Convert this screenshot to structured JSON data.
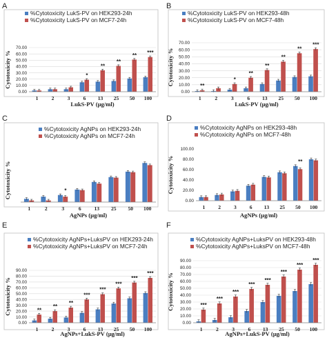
{
  "colors": {
    "blue": "#4a7ec1",
    "red": "#c0504d",
    "grid": "#d9d9d9",
    "axis": "#7f7f7f",
    "frame": "#bfbfbf"
  },
  "chart_data": [
    {
      "type": "bar",
      "letter": "A",
      "categories": [
        "1",
        "2",
        "3",
        "6",
        "13",
        "25",
        "50",
        "100"
      ],
      "series": [
        {
          "name": "%Cytotoxicity LukS-PV on HEK293-24h",
          "values": [
            2,
            4,
            4,
            15,
            16,
            17,
            21,
            23
          ]
        },
        {
          "name": "%Cytotoxicity LukS-PV on MCF7-24h",
          "values": [
            2,
            4,
            7,
            19,
            34,
            41,
            51,
            55
          ]
        }
      ],
      "annotations": [
        "",
        "",
        "",
        "*",
        "**",
        "**",
        "**",
        "***"
      ],
      "xlabel": "LukS-PV (µg/ml)",
      "ylabel": "Cytotoxicity %",
      "ylim": [
        0,
        70
      ],
      "yticks": [
        "0.00",
        "10.00",
        "20.00",
        "30.00",
        "40.00",
        "50.00",
        "60.00",
        "70.00"
      ],
      "grid": true,
      "legend": "top-left"
    },
    {
      "type": "bar",
      "letter": "B",
      "categories": [
        "1",
        "2",
        "3",
        "6",
        "13",
        "25",
        "50",
        "100"
      ],
      "series": [
        {
          "name": "%Cytotoxicity LukS-PV on HEK293-48h",
          "values": [
            1,
            1,
            3,
            5,
            11,
            16,
            21,
            22
          ]
        },
        {
          "name": "%Cytotoxicity LukS-PV on MCF7-48h",
          "values": [
            2,
            5,
            11,
            20,
            31,
            43,
            55,
            61
          ]
        }
      ],
      "annotations": [
        "**",
        "",
        "*",
        "**",
        "**",
        "**",
        "**",
        "***"
      ],
      "xlabel": "LukS-PV (µg/ml)",
      "ylabel": "Cytotoxicity %",
      "ylim": [
        0,
        70
      ],
      "yticks": [
        "0.00",
        "10.00",
        "20.00",
        "30.00",
        "40.00",
        "50.00",
        "60.00",
        "70.00"
      ],
      "grid": true,
      "legend": "top-left"
    },
    {
      "type": "bar",
      "letter": "C",
      "categories": [
        "1",
        "2",
        "3",
        "6",
        "13",
        "25",
        "50",
        "100"
      ],
      "series": [
        {
          "name": "%Cytotoxicity AgNPs on HEK293-24h",
          "values": [
            6,
            10,
            13,
            23,
            37,
            46,
            56,
            72
          ]
        },
        {
          "name": "%Cytotoxicity AgNPs on MCF7-24h",
          "values": [
            3,
            3,
            10,
            22,
            34,
            45,
            55,
            68
          ]
        }
      ],
      "annotations": [
        "",
        "",
        "*",
        "",
        "",
        "",
        "",
        ""
      ],
      "xlabel": "AgNPs (µg/ml)",
      "ylabel": "Cytotoxicity %",
      "ylim": [
        0,
        80
      ],
      "yticks": [],
      "grid": false,
      "legend": "top-left"
    },
    {
      "type": "bar",
      "letter": "D",
      "categories": [
        "1",
        "2",
        "3",
        "6",
        "13",
        "25",
        "50",
        "100"
      ],
      "series": [
        {
          "name": "%Cytotoxicity AgNPs on HEK293-48h",
          "values": [
            7,
            11,
            18,
            29,
            46,
            55,
            67,
            80
          ]
        },
        {
          "name": "%Cytotoxicity AgNPs on MCF7-48h",
          "values": [
            7,
            12,
            19,
            31,
            45,
            53,
            61,
            78
          ]
        }
      ],
      "annotations": [
        "",
        "",
        "",
        "",
        "",
        "",
        "**",
        ""
      ],
      "xlabel": "AgNPs (µg/ml)",
      "ylabel": "Cytotoxicity %",
      "ylim": [
        0,
        100
      ],
      "yticks": [
        "0.00",
        "20.00",
        "40.00",
        "60.00",
        "80.00",
        "100.00"
      ],
      "grid": false,
      "legend": "top-left"
    },
    {
      "type": "bar",
      "letter": "E",
      "categories": [
        "1",
        "2",
        "3",
        "6",
        "13",
        "25",
        "50",
        "100"
      ],
      "series": [
        {
          "name": "%Cytotoxicity AgNPs+LuksPV on  HEK293-24h",
          "values": [
            4,
            7,
            9,
            17,
            23,
            33,
            42,
            51
          ]
        },
        {
          "name": "%Cytotoxicity AgNPs+LuksPV on  MCF7-24h",
          "values": [
            14,
            20,
            26,
            40,
            49,
            59,
            69,
            77
          ]
        }
      ],
      "annotations": [
        "**",
        "**",
        "**",
        "***",
        "***",
        "***",
        "***",
        "***"
      ],
      "xlabel": "AgNPs+LukS-PV (µg/ml)",
      "ylabel": "Cytotoxicity %",
      "ylim": [
        0,
        90
      ],
      "yticks": [
        "0.00",
        "10.00",
        "20.00",
        "30.00",
        "40.00",
        "50.00",
        "60.00",
        "70.00",
        "80.00",
        "90.00"
      ],
      "grid": true,
      "legend": "top-left"
    },
    {
      "type": "bar",
      "letter": "F",
      "categories": [
        "1",
        "2",
        "3",
        "6",
        "13",
        "25",
        "50",
        "100"
      ],
      "series": [
        {
          "name": "%Cytotoxicity AgNPs+LuksPV on  HEK293-48h",
          "values": [
            2,
            4,
            8,
            17,
            30,
            39,
            46,
            56
          ]
        },
        {
          "name": "%Cytotoxicity AgNPs+LuksPV on  MCF7-48h",
          "values": [
            19,
            28,
            38,
            49,
            55,
            67,
            77,
            84
          ]
        }
      ],
      "annotations": [
        "***",
        "***",
        "***",
        "***",
        "***",
        "***",
        "***",
        "***"
      ],
      "xlabel": "AgNPs+LukS-PV (µg/ml)",
      "ylabel": "Cytotoxicity %",
      "ylim": [
        0,
        90
      ],
      "yticks": [
        "0.00",
        "10.00",
        "20.00",
        "30.00",
        "40.00",
        "50.00",
        "60.00",
        "70.00",
        "80.00",
        "90.00"
      ],
      "grid": true,
      "legend": "top-left"
    }
  ]
}
